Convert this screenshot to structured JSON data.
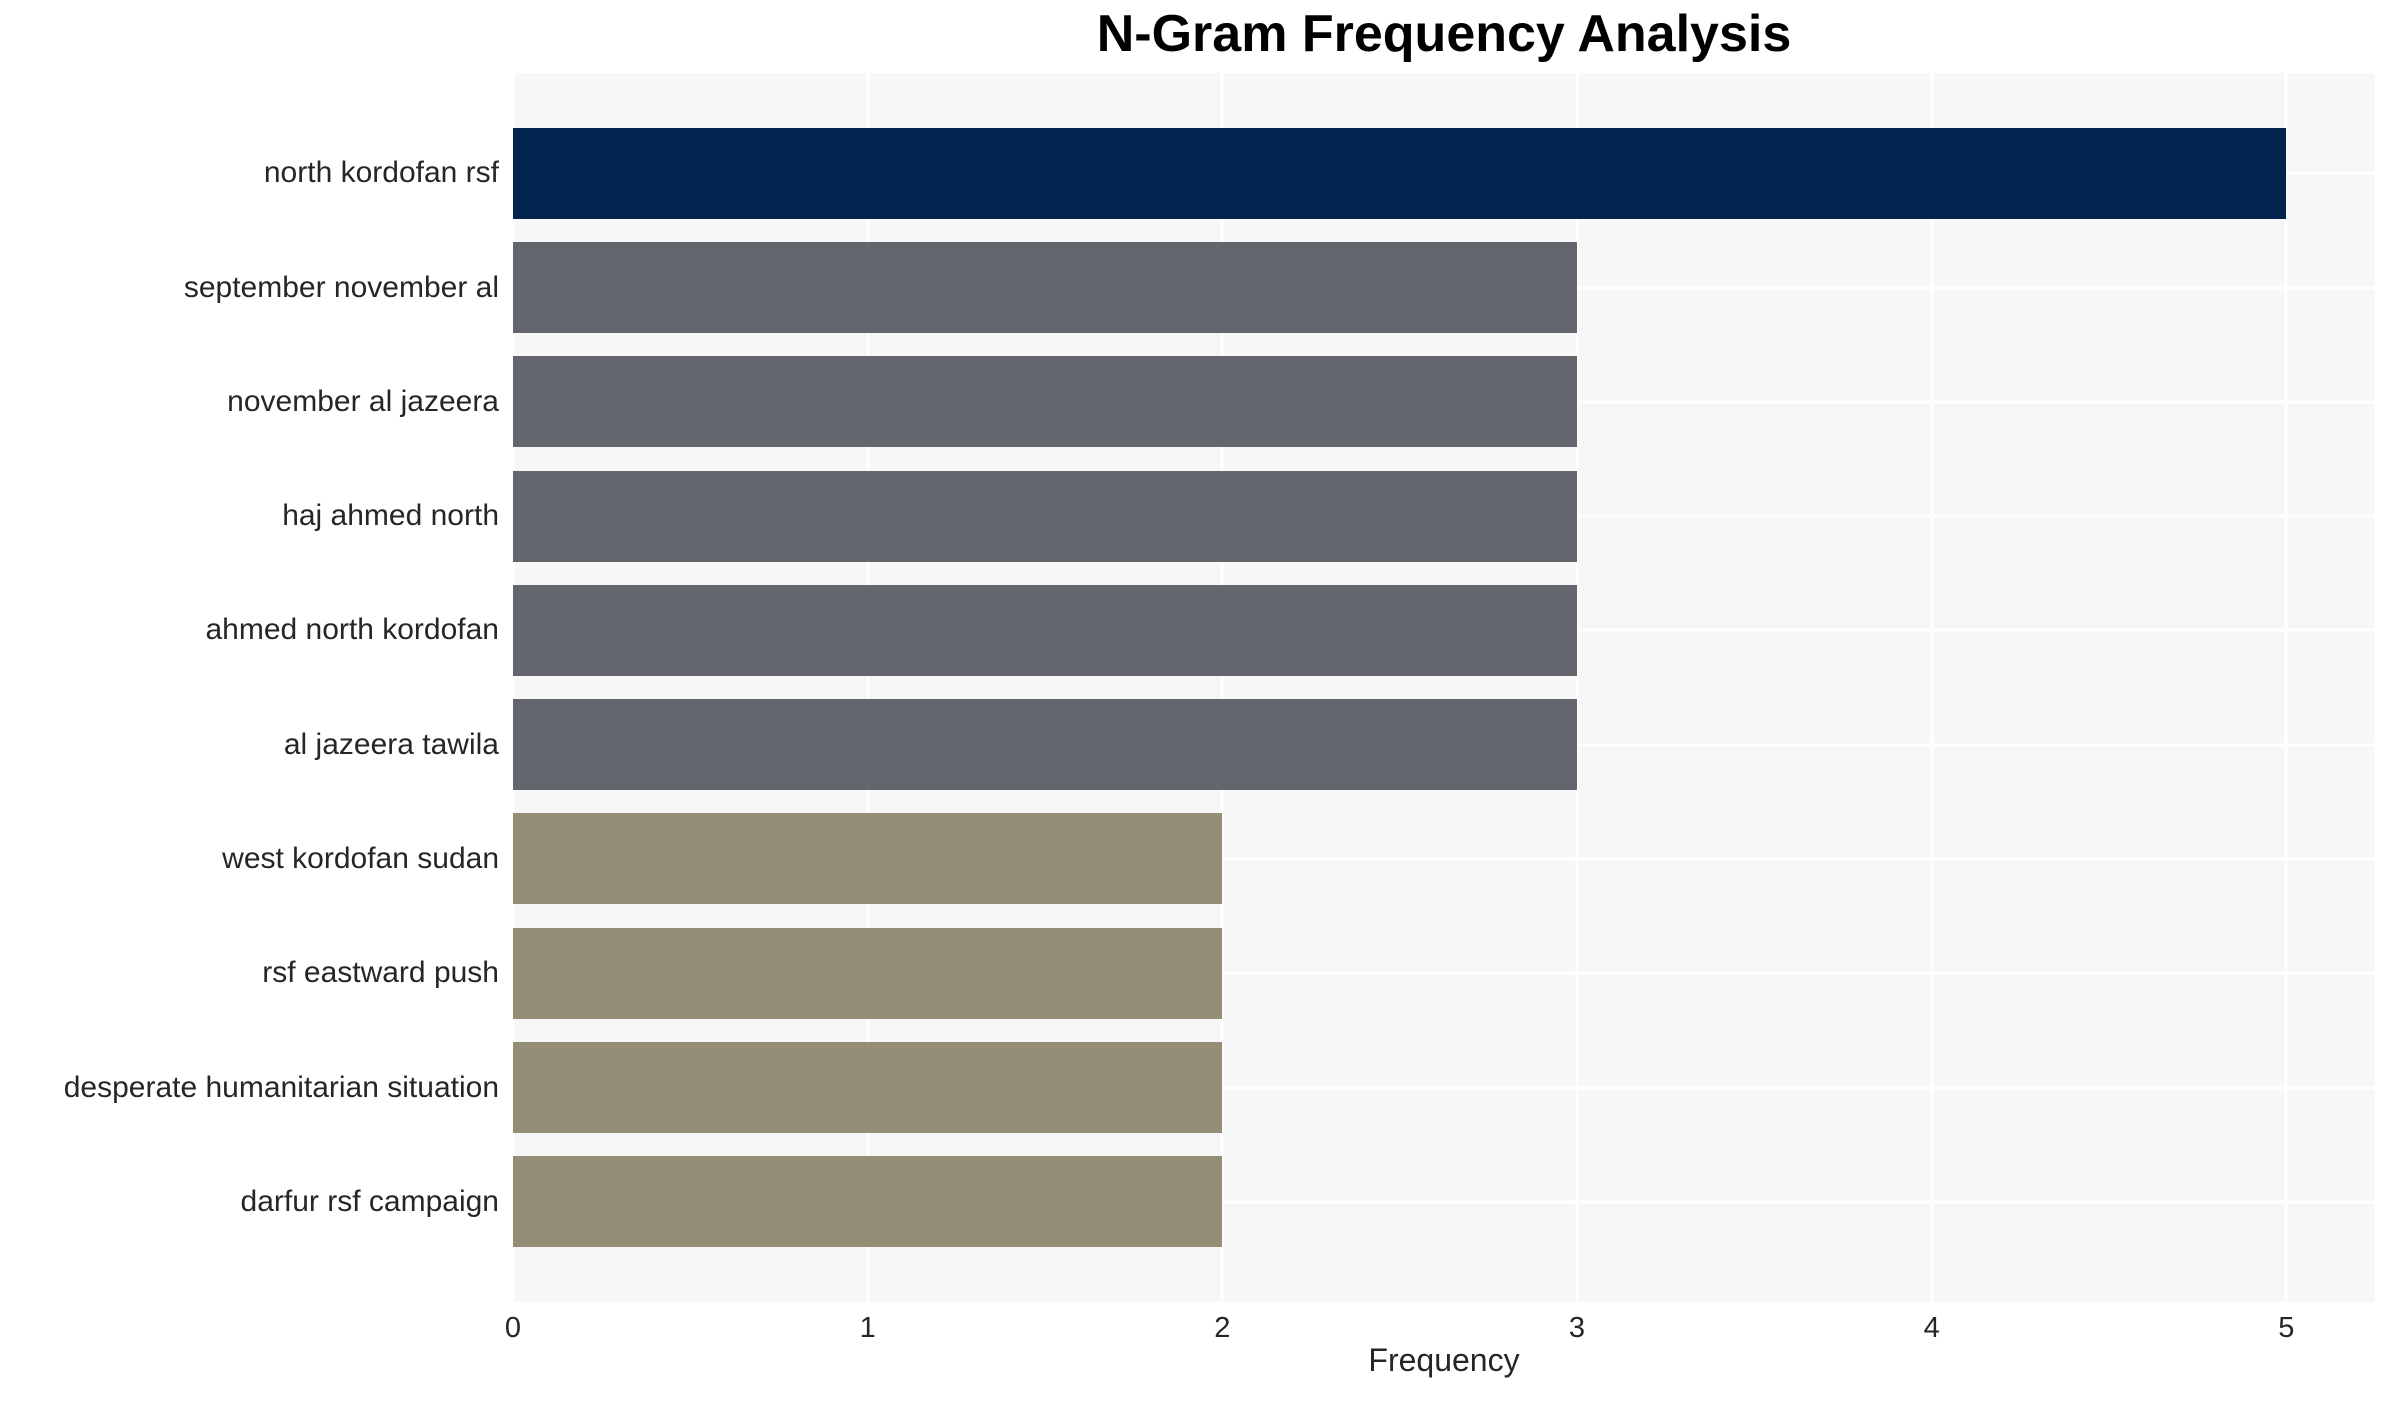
{
  "chart_data": {
    "type": "bar",
    "orientation": "horizontal",
    "title": "N-Gram Frequency Analysis",
    "xlabel": "Frequency",
    "ylabel": "",
    "categories": [
      "north kordofan rsf",
      "september november al",
      "november al jazeera",
      "haj ahmed north",
      "ahmed north kordofan",
      "al jazeera tawila",
      "west kordofan sudan",
      "rsf eastward push",
      "desperate humanitarian situation",
      "darfur rsf campaign"
    ],
    "values": [
      5,
      3,
      3,
      3,
      3,
      3,
      2,
      2,
      2,
      2
    ],
    "bar_colors": [
      "#02234D",
      "#64666D",
      "#64666D",
      "#64666D",
      "#64666D",
      "#64666D",
      "#938E75",
      "#938E75",
      "#938E75",
      "#938E75"
    ],
    "xticks": [
      "0",
      "1",
      "2",
      "3",
      "4",
      "5"
    ],
    "xlim": [
      0,
      5.25
    ],
    "grid": "on",
    "legend": "none"
  },
  "style": {
    "plot_background": "#F7F7F7",
    "gridline_color": "#FFFFFF",
    "title_color": "#000000",
    "text_color": "#262626",
    "page_background": "#FFFFFF"
  }
}
